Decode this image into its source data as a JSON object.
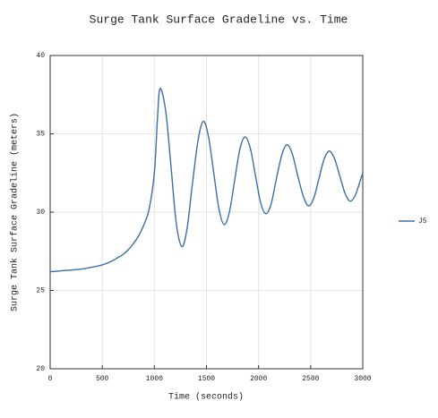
{
  "chart_data": {
    "type": "line",
    "title": "Surge Tank Surface Gradeline vs. Time",
    "xlabel": "Time (seconds)",
    "ylabel": "Surge Tank Surface Gradeline (meters)",
    "x": [
      0,
      50,
      100,
      150,
      200,
      250,
      300,
      350,
      400,
      450,
      500,
      550,
      600,
      650,
      700,
      750,
      800,
      850,
      900,
      950,
      1000,
      1030,
      1055,
      1110,
      1160,
      1210,
      1265,
      1315,
      1365,
      1420,
      1470,
      1520,
      1570,
      1620,
      1670,
      1720,
      1770,
      1820,
      1870,
      1920,
      1970,
      2020,
      2070,
      2120,
      2170,
      2225,
      2275,
      2325,
      2375,
      2430,
      2480,
      2530,
      2580,
      2630,
      2680,
      2730,
      2780,
      2830,
      2880,
      2930,
      2980,
      3000
    ],
    "series": [
      {
        "name": "J5",
        "color": "#3a6ea8",
        "values": [
          26.2,
          26.22,
          26.25,
          26.28,
          26.3,
          26.33,
          26.37,
          26.42,
          26.48,
          26.55,
          26.63,
          26.75,
          26.9,
          27.1,
          27.3,
          27.6,
          28.0,
          28.5,
          29.2,
          30.2,
          32.5,
          36.0,
          37.9,
          36.4,
          32.9,
          29.3,
          27.8,
          29.0,
          31.8,
          34.6,
          35.8,
          34.8,
          32.5,
          30.2,
          29.2,
          30.0,
          32.0,
          34.0,
          34.8,
          34.1,
          32.35,
          30.6,
          29.9,
          30.5,
          32.1,
          33.7,
          34.3,
          33.7,
          32.35,
          31.0,
          30.4,
          30.9,
          32.15,
          33.4,
          33.9,
          33.4,
          32.3,
          31.2,
          30.7,
          31.1,
          32.1,
          32.5
        ]
      }
    ],
    "xlim": [
      0,
      3000
    ],
    "xticks": [
      0,
      500,
      1000,
      1500,
      2000,
      2500,
      3000
    ],
    "ylim": [
      20,
      40
    ],
    "yticks": [
      20,
      25,
      30,
      35,
      40
    ],
    "grid": true,
    "legend": "right"
  }
}
